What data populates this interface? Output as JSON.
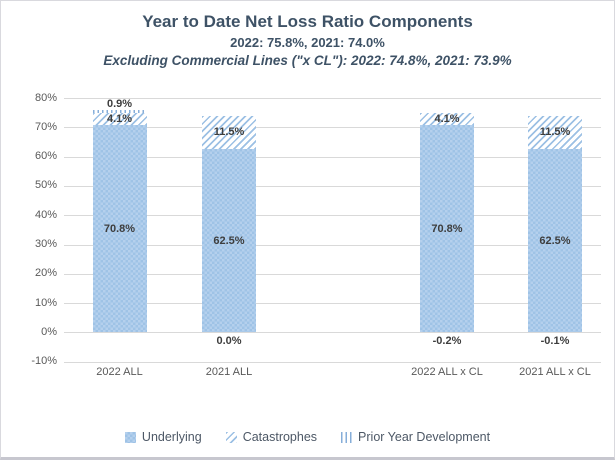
{
  "chart_data": {
    "type": "bar",
    "stacked": true,
    "title": "Year to Date Net Loss Ratio Components",
    "subtitle": "2022: 75.8%, 2021: 74.0%",
    "subtitle2": "Excluding Commercial Lines (\"x CL\"): 2022: 74.8%, 2021: 73.9%",
    "categories": [
      "2022 ALL",
      "2021 ALL",
      "2022 ALL x CL",
      "2021 ALL x CL"
    ],
    "series": [
      {
        "name": "Underlying",
        "pattern": "checker",
        "values": [
          70.8,
          62.5,
          70.8,
          62.5
        ],
        "labels": [
          "70.8%",
          "62.5%",
          "70.8%",
          "62.5%"
        ]
      },
      {
        "name": "Catastrophes",
        "pattern": "hatch",
        "values": [
          4.1,
          11.5,
          4.1,
          11.5
        ],
        "labels": [
          "4.1%",
          "11.5%",
          "4.1%",
          "11.5%"
        ]
      },
      {
        "name": "Prior Year Development",
        "pattern": "vlines",
        "values": [
          0.9,
          0.0,
          -0.2,
          -0.1
        ],
        "labels": [
          "0.9%",
          "0.0%",
          "-0.2%",
          "-0.1%"
        ]
      }
    ],
    "ylim": [
      -10,
      80
    ],
    "ytick_step": 10,
    "ytick_labels": [
      "80%",
      "70%",
      "60%",
      "50%",
      "40%",
      "30%",
      "20%",
      "10%",
      "0%",
      "-10%"
    ],
    "grid": true,
    "legend_position": "bottom",
    "legend": [
      "Underlying",
      "Catastrophes",
      "Prior Year Development"
    ],
    "colors": {
      "fill_blue": "#b5d0ed",
      "checker_blue": "#9fc3e6",
      "hatch_blue": "#9cc0e4",
      "line_blue": "#86aed9",
      "grid": "#d9d9d9",
      "title_text": "#3e5266",
      "axis_text": "#595959",
      "label_text": "#3d3d3d"
    }
  }
}
